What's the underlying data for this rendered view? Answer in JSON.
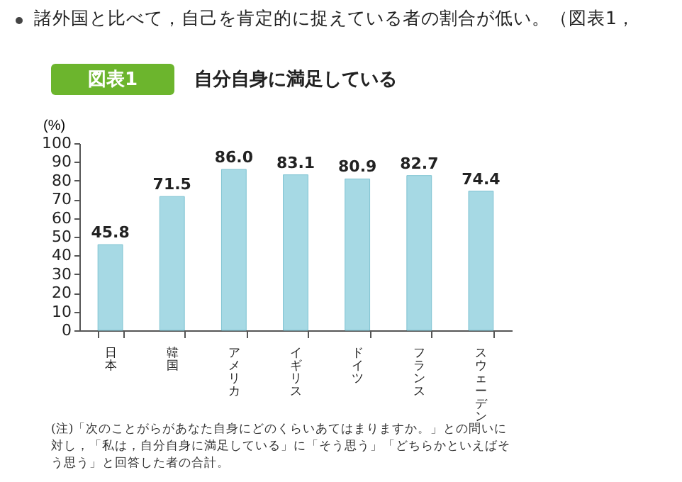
{
  "chart_data": {
    "type": "bar",
    "title": "図表1",
    "subtitle": "自分自身に満足している",
    "ylabel": "(%)",
    "categories": [
      "日本",
      "韓国",
      "アメリカ",
      "イギリス",
      "ドイツ",
      "フランス",
      "スウェーデン"
    ],
    "values": [
      45.8,
      71.5,
      86.0,
      83.1,
      80.9,
      82.7,
      74.4
    ],
    "color": "#a6d9e4",
    "ylim": [
      0,
      100
    ],
    "yticks": [
      0,
      10,
      20,
      30,
      40,
      50,
      60,
      70,
      80,
      90,
      100
    ],
    "grid": false,
    "value_labels": [
      "45.8",
      "71.5",
      "86.0",
      "83.1",
      "80.9",
      "82.7",
      "74.4"
    ],
    "annotations": [
      "諸外国と比べて，自己を肯定的に捉えている者の割合が低い。（図表1，",
      "(注)「次のことがらがあなた自身にどのくらいあてはまりますか。」との問いに対し，「私は，自分自身に満足している」に「そう思う」「どちらかといえばそう思う」と回答した者の合計。"
    ]
  }
}
